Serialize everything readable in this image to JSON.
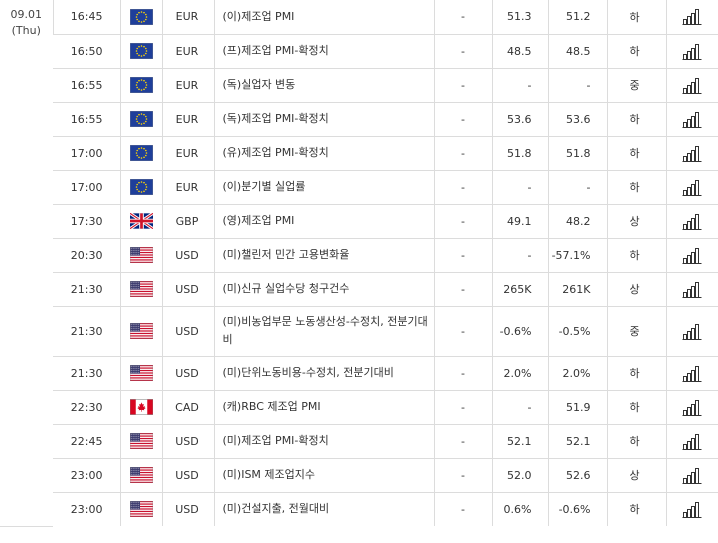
{
  "date": {
    "day": "09.01",
    "weekday": "(Thu)"
  },
  "chart_icon_name": "bar-chart-icon",
  "rows": [
    {
      "time": "16:45",
      "flag": "eu",
      "currency": "EUR",
      "event": "(이)제조업 PMI",
      "importance": "-",
      "actual": "51.3",
      "forecast": "51.2",
      "level": "하"
    },
    {
      "time": "16:50",
      "flag": "eu",
      "currency": "EUR",
      "event": "(프)제조업 PMI-확정치",
      "importance": "-",
      "actual": "48.5",
      "forecast": "48.5",
      "level": "하"
    },
    {
      "time": "16:55",
      "flag": "eu",
      "currency": "EUR",
      "event": "(독)실업자 변동",
      "importance": "-",
      "actual": "-",
      "forecast": "-",
      "level": "중"
    },
    {
      "time": "16:55",
      "flag": "eu",
      "currency": "EUR",
      "event": "(독)제조업 PMI-확정치",
      "importance": "-",
      "actual": "53.6",
      "forecast": "53.6",
      "level": "하"
    },
    {
      "time": "17:00",
      "flag": "eu",
      "currency": "EUR",
      "event": "(유)제조업 PMI-확정치",
      "importance": "-",
      "actual": "51.8",
      "forecast": "51.8",
      "level": "하"
    },
    {
      "time": "17:00",
      "flag": "eu",
      "currency": "EUR",
      "event": "(이)분기별 실업률",
      "importance": "-",
      "actual": "-",
      "forecast": "-",
      "level": "하"
    },
    {
      "time": "17:30",
      "flag": "gb",
      "currency": "GBP",
      "event": "(영)제조업 PMI",
      "importance": "-",
      "actual": "49.1",
      "forecast": "48.2",
      "level": "상"
    },
    {
      "time": "20:30",
      "flag": "us",
      "currency": "USD",
      "event": "(미)챌린저 민간 고용변화율",
      "importance": "-",
      "actual": "-",
      "forecast": "-57.1%",
      "level": "하"
    },
    {
      "time": "21:30",
      "flag": "us",
      "currency": "USD",
      "event": "(미)신규 실업수당 청구건수",
      "importance": "-",
      "actual": "265K",
      "forecast": "261K",
      "level": "상"
    },
    {
      "time": "21:30",
      "flag": "us",
      "currency": "USD",
      "event": "(미)비농업부문 노동생산성-수정치, 전분기대비",
      "importance": "-",
      "actual": "-0.6%",
      "forecast": "-0.5%",
      "level": "중",
      "tall": true
    },
    {
      "time": "21:30",
      "flag": "us",
      "currency": "USD",
      "event": "(미)단위노동비용-수정치, 전분기대비",
      "importance": "-",
      "actual": "2.0%",
      "forecast": "2.0%",
      "level": "하"
    },
    {
      "time": "22:30",
      "flag": "ca",
      "currency": "CAD",
      "event": "(캐)RBC 제조업 PMI",
      "importance": "-",
      "actual": "-",
      "forecast": "51.9",
      "level": "하"
    },
    {
      "time": "22:45",
      "flag": "us",
      "currency": "USD",
      "event": "(미)제조업 PMI-확정치",
      "importance": "-",
      "actual": "52.1",
      "forecast": "52.1",
      "level": "하"
    },
    {
      "time": "23:00",
      "flag": "us",
      "currency": "USD",
      "event": "(미)ISM 제조업지수",
      "importance": "-",
      "actual": "52.0",
      "forecast": "52.6",
      "level": "상"
    },
    {
      "time": "23:00",
      "flag": "us",
      "currency": "USD",
      "event": "(미)건설지출, 전월대비",
      "importance": "-",
      "actual": "0.6%",
      "forecast": "-0.6%",
      "level": "하"
    }
  ]
}
